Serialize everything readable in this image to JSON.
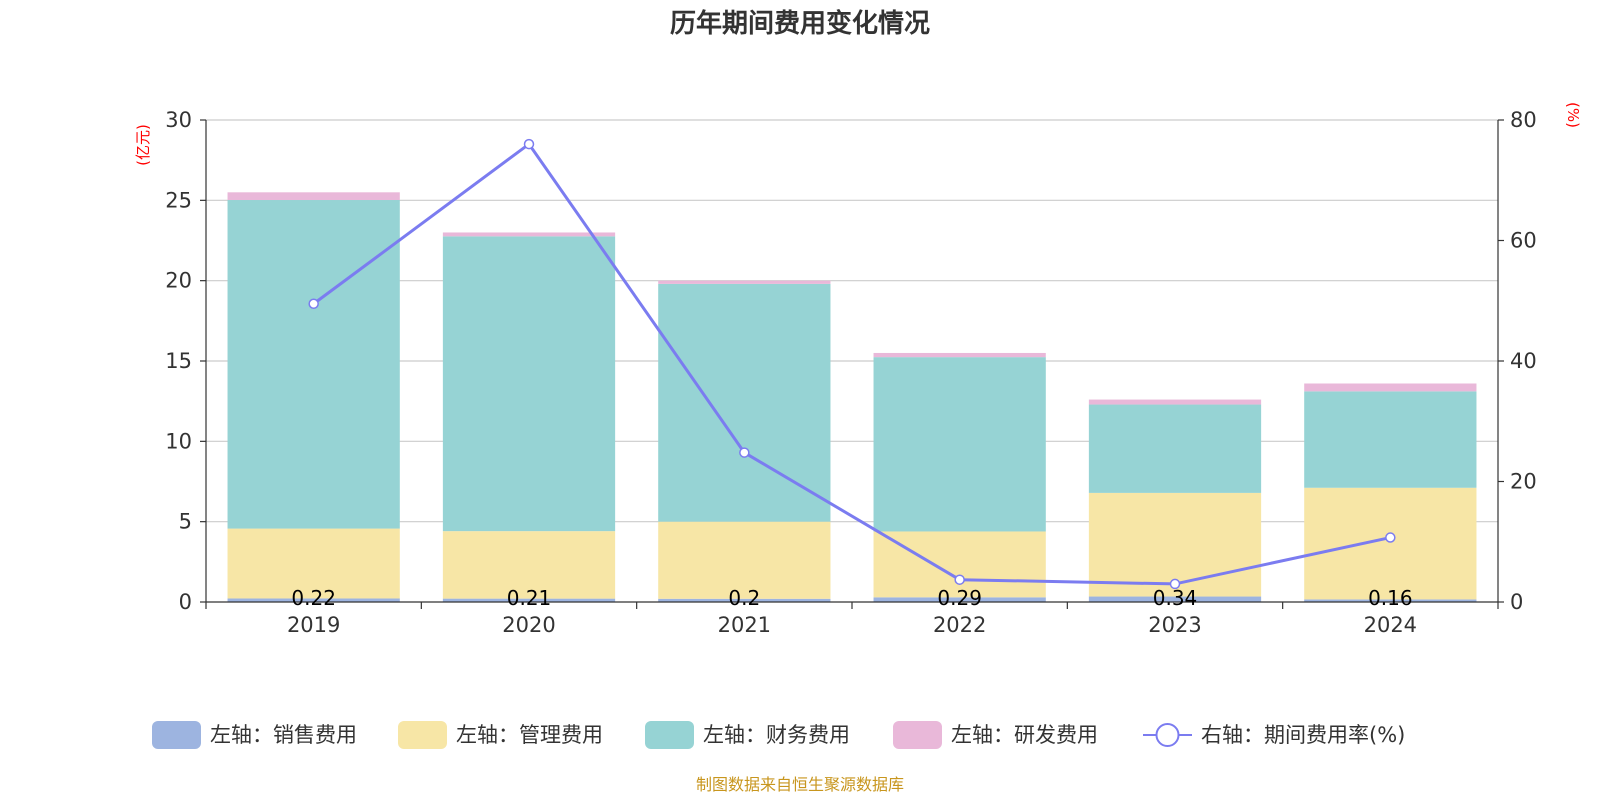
{
  "chart_data": {
    "type": "bar",
    "title": "历年期间费用变化情况",
    "categories": [
      "2019",
      "2020",
      "2021",
      "2022",
      "2023",
      "2024"
    ],
    "left_axis": {
      "unit_label": "(亿元)",
      "ylim": [
        0,
        30
      ],
      "ticks": [
        "0",
        "5",
        "10",
        "15",
        "20",
        "25",
        "30"
      ]
    },
    "right_axis": {
      "unit_label": "(%)",
      "ylim": [
        0,
        80
      ],
      "ticks": [
        "0",
        "20",
        "40",
        "60",
        "80"
      ]
    },
    "stacked": true,
    "grid": true,
    "legend_position": "bottom",
    "series": [
      {
        "name": "左轴：销售费用",
        "axis": "left",
        "type": "bar",
        "color": "#9db4e0",
        "values": [
          0.22,
          0.21,
          0.2,
          0.29,
          0.34,
          0.16
        ],
        "labels": [
          "0.22",
          "0.21",
          "0.2",
          "0.29",
          "0.34",
          "0.16"
        ]
      },
      {
        "name": "左轴：管理费用",
        "axis": "left",
        "type": "bar",
        "color": "#f7e6a6",
        "values": [
          4.35,
          4.2,
          4.8,
          4.1,
          6.45,
          6.95
        ]
      },
      {
        "name": "左轴：财务费用",
        "axis": "left",
        "type": "bar",
        "color": "#96d3d4",
        "values": [
          20.45,
          18.35,
          14.8,
          10.85,
          5.5,
          6.0
        ]
      },
      {
        "name": "左轴：研发费用",
        "axis": "left",
        "type": "bar",
        "color": "#e9b8d9",
        "values": [
          0.48,
          0.24,
          0.2,
          0.26,
          0.31,
          0.49
        ]
      },
      {
        "name": "右轴：期间费用率(%)",
        "axis": "right",
        "type": "line",
        "color": "#7b7cf0",
        "values": [
          49.5,
          76.0,
          24.8,
          3.7,
          3.0,
          10.7
        ]
      }
    ],
    "source_note": "制图数据来自恒生聚源数据库"
  }
}
